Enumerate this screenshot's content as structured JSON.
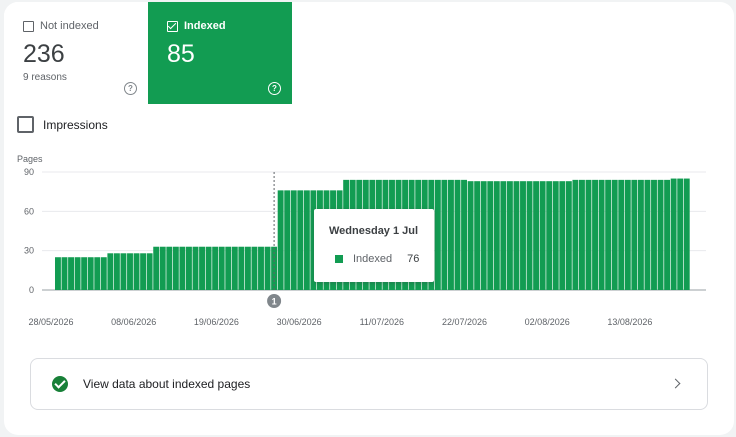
{
  "metrics": {
    "not_indexed": {
      "label": "Not indexed",
      "value": "236",
      "sub": "9 reasons",
      "help": "?"
    },
    "indexed": {
      "label": "Indexed",
      "value": "85",
      "help": "?"
    }
  },
  "impressions": {
    "label": "Impressions"
  },
  "chart_data": {
    "type": "bar",
    "ylabel": "Pages",
    "ylim": [
      0,
      90
    ],
    "yticks": [
      "0",
      "30",
      "60",
      "90"
    ],
    "xticks": [
      "28/05/2026",
      "08/06/2026",
      "19/06/2026",
      "30/06/2026",
      "11/07/2026",
      "22/07/2026",
      "02/08/2026",
      "13/08/2026"
    ],
    "series": [
      {
        "name": "Indexed",
        "color": "#129c52",
        "values": [
          25,
          25,
          25,
          25,
          25,
          25,
          25,
          25,
          28,
          28,
          28,
          28,
          28,
          28,
          28,
          33,
          33,
          33,
          33,
          33,
          33,
          33,
          33,
          33,
          33,
          33,
          33,
          33,
          33,
          33,
          33,
          33,
          33,
          33,
          76,
          76,
          76,
          76,
          76,
          76,
          76,
          76,
          76,
          76,
          84,
          84,
          84,
          84,
          84,
          84,
          84,
          84,
          84,
          84,
          84,
          84,
          84,
          84,
          84,
          84,
          84,
          84,
          84,
          83,
          83,
          83,
          83,
          83,
          83,
          83,
          83,
          83,
          83,
          83,
          83,
          83,
          83,
          83,
          83,
          84,
          84,
          84,
          84,
          84,
          84,
          84,
          84,
          84,
          84,
          84,
          84,
          84,
          84,
          84,
          85,
          85,
          85
        ]
      }
    ],
    "annotation": {
      "marker": "1",
      "index": 33
    },
    "tooltip": {
      "date": "Wednesday 1 Jul",
      "series": "Indexed",
      "value": "76"
    }
  },
  "footer": {
    "link_text": "View data about indexed pages"
  }
}
